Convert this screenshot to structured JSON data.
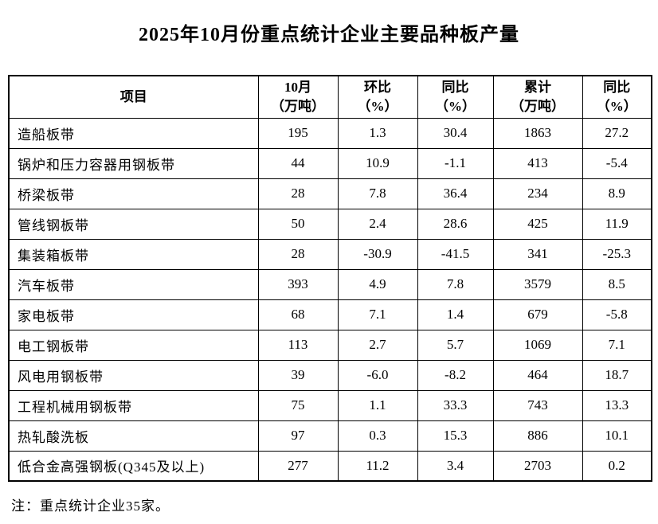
{
  "title": "2025年10月份重点统计企业主要品种板产量",
  "note": "注：重点统计企业35家。",
  "colors": {
    "background": "#ffffff",
    "text": "#000000",
    "border": "#000000"
  },
  "table": {
    "columns": [
      {
        "label": "项目",
        "sub": ""
      },
      {
        "label": "10月",
        "sub": "（万吨）"
      },
      {
        "label": "环比",
        "sub": "（%）"
      },
      {
        "label": "同比",
        "sub": "（%）"
      },
      {
        "label": "累计",
        "sub": "（万吨）"
      },
      {
        "label": "同比",
        "sub": "（%）"
      }
    ],
    "rows": [
      [
        "造船板带",
        "195",
        "1.3",
        "30.4",
        "1863",
        "27.2"
      ],
      [
        "锅炉和压力容器用钢板带",
        "44",
        "10.9",
        "-1.1",
        "413",
        "-5.4"
      ],
      [
        "桥梁板带",
        "28",
        "7.8",
        "36.4",
        "234",
        "8.9"
      ],
      [
        "管线钢板带",
        "50",
        "2.4",
        "28.6",
        "425",
        "11.9"
      ],
      [
        "集装箱板带",
        "28",
        "-30.9",
        "-41.5",
        "341",
        "-25.3"
      ],
      [
        "汽车板带",
        "393",
        "4.9",
        "7.8",
        "3579",
        "8.5"
      ],
      [
        "家电板带",
        "68",
        "7.1",
        "1.4",
        "679",
        "-5.8"
      ],
      [
        "电工钢板带",
        "113",
        "2.7",
        "5.7",
        "1069",
        "7.1"
      ],
      [
        "风电用钢板带",
        "39",
        "-6.0",
        "-8.2",
        "464",
        "18.7"
      ],
      [
        "工程机械用钢板带",
        "75",
        "1.1",
        "33.3",
        "743",
        "13.3"
      ],
      [
        "热轧酸洗板",
        "97",
        "0.3",
        "15.3",
        "886",
        "10.1"
      ],
      [
        "低合金高强钢板(Q345及以上)",
        "277",
        "11.2",
        "3.4",
        "2703",
        "0.2"
      ]
    ]
  }
}
